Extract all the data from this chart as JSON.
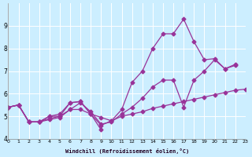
{
  "xlabel": "Windchill (Refroidissement éolien,°C)",
  "background_color": "#cceeff",
  "line_color": "#993399",
  "xlim": [
    0,
    23
  ],
  "ylim": [
    4,
    10
  ],
  "yticks": [
    4,
    5,
    6,
    7,
    8,
    9
  ],
  "xticks": [
    0,
    1,
    2,
    3,
    4,
    5,
    6,
    7,
    8,
    9,
    10,
    11,
    12,
    13,
    14,
    15,
    16,
    17,
    18,
    19,
    20,
    21,
    22,
    23
  ],
  "lines": [
    {
      "x": [
        0,
        1,
        2,
        3,
        4,
        5,
        6,
        7,
        8,
        9,
        10,
        11,
        12,
        13,
        14,
        15,
        16,
        17,
        18,
        19,
        20,
        21,
        22,
        23
      ],
      "y": [
        5.4,
        5.5,
        4.75,
        4.75,
        4.85,
        4.95,
        5.3,
        5.3,
        5.1,
        4.95,
        4.8,
        5.0,
        5.1,
        5.2,
        5.35,
        5.45,
        5.55,
        5.65,
        5.75,
        5.85,
        5.95,
        6.05,
        6.15,
        6.2
      ]
    },
    {
      "x": [
        0,
        1,
        2,
        3,
        4,
        5,
        6,
        7,
        8,
        9,
        10,
        11,
        12,
        13,
        14,
        15,
        16,
        17,
        18,
        19,
        20,
        21,
        22,
        23
      ],
      "y": [
        5.4,
        5.5,
        4.75,
        4.75,
        4.9,
        5.0,
        5.3,
        5.6,
        5.2,
        4.65,
        4.75,
        5.1,
        5.4,
        5.8,
        6.3,
        6.6,
        6.6,
        5.4,
        6.6,
        7.0,
        7.5,
        7.1,
        7.3,
        null
      ]
    },
    {
      "x": [
        0,
        1,
        2,
        3,
        4,
        5,
        6,
        7,
        8,
        9,
        10,
        11,
        12,
        13,
        14,
        15,
        16,
        17,
        18,
        19,
        20,
        21,
        22
      ],
      "y": [
        5.4,
        5.5,
        4.75,
        4.75,
        5.0,
        5.1,
        5.6,
        5.65,
        5.1,
        4.6,
        4.8,
        5.3,
        6.5,
        7.0,
        8.0,
        8.65,
        8.65,
        9.3,
        8.3,
        7.5,
        7.55,
        7.1,
        7.25
      ]
    },
    {
      "x": [
        0,
        1,
        2,
        3,
        4,
        5,
        6,
        7,
        8,
        9
      ],
      "y": [
        5.4,
        5.5,
        4.75,
        4.75,
        5.0,
        5.0,
        5.6,
        5.65,
        5.1,
        4.4
      ]
    }
  ]
}
